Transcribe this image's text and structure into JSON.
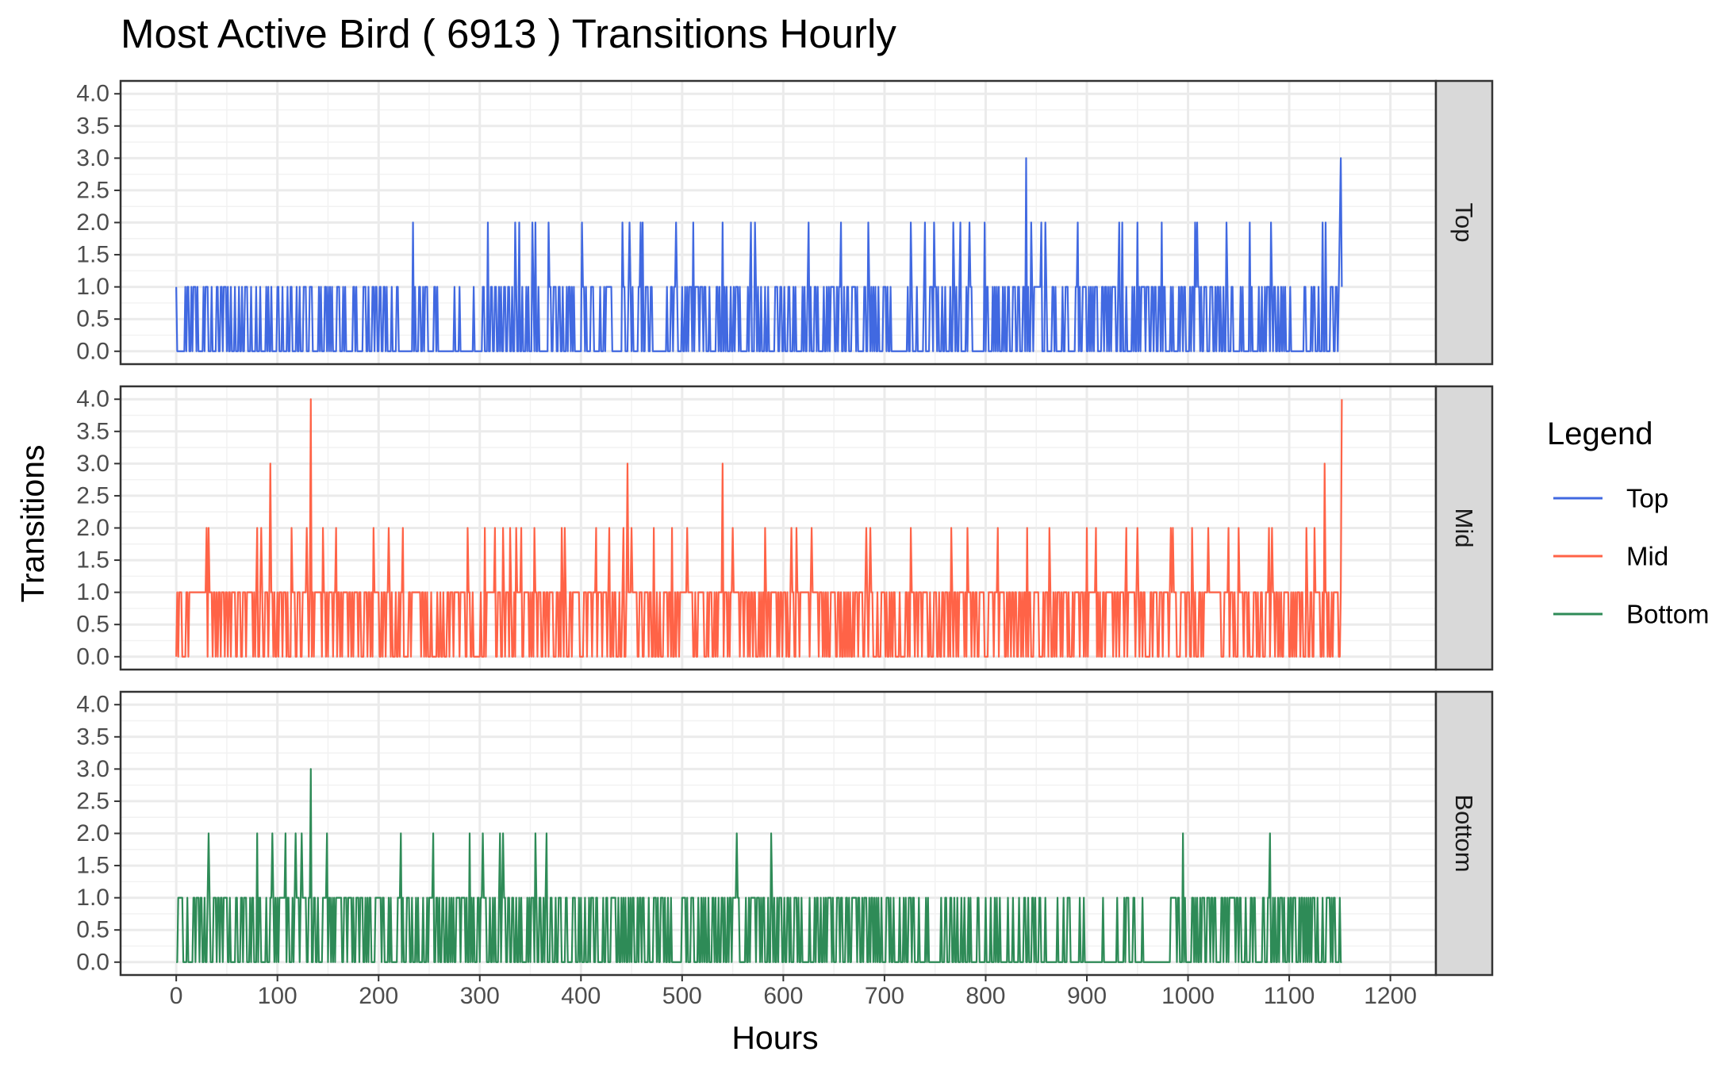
{
  "chart_data": {
    "type": "line",
    "title": "Most Active Bird ( 6913 ) Transitions Hourly",
    "xlabel": "Hours",
    "ylabel": "Transitions",
    "xlim": [
      -55,
      1245
    ],
    "ylim": [
      -0.2,
      4.2
    ],
    "x_ticks": [
      "0",
      "100",
      "200",
      "300",
      "400",
      "500",
      "600",
      "700",
      "800",
      "900",
      "1000",
      "1100",
      "1200"
    ],
    "y_ticks": [
      "0.0",
      "0.5",
      "1.0",
      "1.5",
      "2.0",
      "2.5",
      "3.0",
      "3.5",
      "4.0"
    ],
    "facets": [
      "Top",
      "Mid",
      "Bottom"
    ],
    "grid": true,
    "legend": {
      "title": "Legend",
      "position": "right",
      "entries": [
        "Top",
        "Mid",
        "Bottom"
      ]
    },
    "colors": {
      "Top": "#4169E1",
      "Mid": "#FF6347",
      "Bottom": "#2E8B57"
    },
    "series": [
      {
        "name": "Top",
        "x_range": [
          0,
          1152
        ],
        "base_level": 0,
        "typical_max": 1,
        "peaks": [
          [
            234,
            2
          ],
          [
            308,
            2
          ],
          [
            335,
            2
          ],
          [
            339,
            2
          ],
          [
            352,
            2
          ],
          [
            355,
            2
          ],
          [
            368,
            2
          ],
          [
            401,
            2
          ],
          [
            441,
            2
          ],
          [
            448,
            2
          ],
          [
            459,
            2
          ],
          [
            461,
            2
          ],
          [
            494,
            2
          ],
          [
            511,
            2
          ],
          [
            540,
            2
          ],
          [
            568,
            2
          ],
          [
            572,
            2
          ],
          [
            625,
            2
          ],
          [
            657,
            2
          ],
          [
            684,
            2
          ],
          [
            726,
            2
          ],
          [
            740,
            2
          ],
          [
            749,
            2
          ],
          [
            768,
            2
          ],
          [
            775,
            2
          ],
          [
            784,
            2
          ],
          [
            799,
            2
          ],
          [
            840,
            3
          ],
          [
            845,
            2
          ],
          [
            855,
            2
          ],
          [
            859,
            2
          ],
          [
            891,
            2
          ],
          [
            932,
            2
          ],
          [
            935,
            2
          ],
          [
            950,
            2
          ],
          [
            974,
            2
          ],
          [
            1007,
            2
          ],
          [
            1009,
            2
          ],
          [
            1038,
            2
          ],
          [
            1061,
            2
          ],
          [
            1082,
            2
          ],
          [
            1133,
            2
          ],
          [
            1136,
            2
          ],
          [
            1150,
            2
          ],
          [
            1151,
            3
          ]
        ]
      },
      {
        "name": "Mid",
        "x_range": [
          0,
          1152
        ],
        "base_level": 0,
        "typical_max": 1,
        "peaks": [
          [
            30,
            2
          ],
          [
            32,
            2
          ],
          [
            80,
            2
          ],
          [
            84,
            2
          ],
          [
            93,
            3
          ],
          [
            114,
            2
          ],
          [
            129,
            2
          ],
          [
            133,
            4
          ],
          [
            145,
            2
          ],
          [
            158,
            2
          ],
          [
            195,
            2
          ],
          [
            210,
            2
          ],
          [
            224,
            2
          ],
          [
            288,
            2
          ],
          [
            305,
            2
          ],
          [
            315,
            2
          ],
          [
            323,
            2
          ],
          [
            330,
            2
          ],
          [
            336,
            2
          ],
          [
            341,
            2
          ],
          [
            354,
            2
          ],
          [
            381,
            2
          ],
          [
            384,
            2
          ],
          [
            415,
            2
          ],
          [
            428,
            2
          ],
          [
            442,
            2
          ],
          [
            446,
            3
          ],
          [
            450,
            2
          ],
          [
            472,
            2
          ],
          [
            490,
            2
          ],
          [
            505,
            2
          ],
          [
            540,
            3
          ],
          [
            550,
            2
          ],
          [
            582,
            2
          ],
          [
            608,
            2
          ],
          [
            613,
            2
          ],
          [
            628,
            2
          ],
          [
            682,
            2
          ],
          [
            686,
            2
          ],
          [
            726,
            2
          ],
          [
            766,
            2
          ],
          [
            782,
            2
          ],
          [
            812,
            2
          ],
          [
            841,
            2
          ],
          [
            863,
            2
          ],
          [
            900,
            2
          ],
          [
            909,
            2
          ],
          [
            939,
            2
          ],
          [
            950,
            2
          ],
          [
            983,
            2
          ],
          [
            985,
            2
          ],
          [
            1004,
            2
          ],
          [
            1020,
            2
          ],
          [
            1040,
            2
          ],
          [
            1050,
            2
          ],
          [
            1080,
            2
          ],
          [
            1083,
            2
          ],
          [
            1117,
            2
          ],
          [
            1125,
            2
          ],
          [
            1135,
            3
          ],
          [
            1152,
            4
          ]
        ]
      },
      {
        "name": "Bottom",
        "x_range": [
          0,
          1152
        ],
        "base_level": 0,
        "typical_max": 1,
        "peaks": [
          [
            32,
            2
          ],
          [
            80,
            2
          ],
          [
            95,
            2
          ],
          [
            108,
            2
          ],
          [
            118,
            2
          ],
          [
            124,
            2
          ],
          [
            133,
            3
          ],
          [
            149,
            2
          ],
          [
            222,
            2
          ],
          [
            254,
            2
          ],
          [
            290,
            2
          ],
          [
            303,
            2
          ],
          [
            320,
            2
          ],
          [
            323,
            2
          ],
          [
            355,
            2
          ],
          [
            366,
            2
          ],
          [
            554,
            2
          ],
          [
            588,
            2
          ],
          [
            995,
            2
          ],
          [
            1081,
            2
          ]
        ]
      }
    ]
  }
}
